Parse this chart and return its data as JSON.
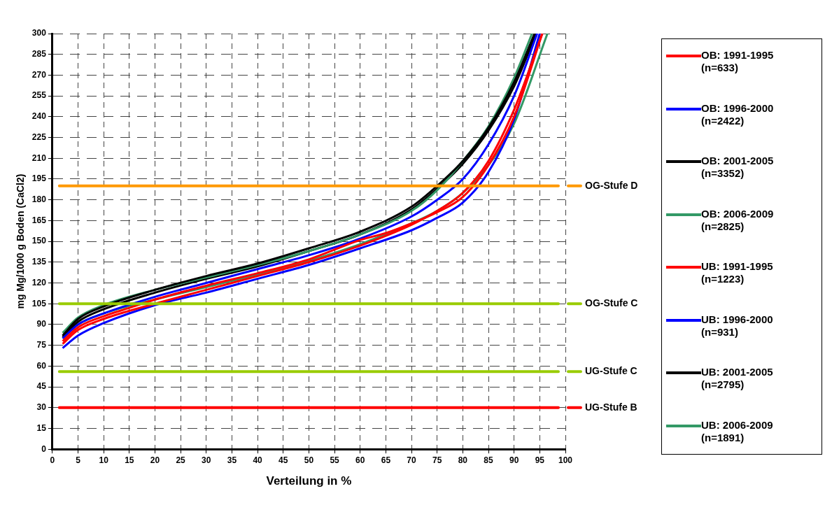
{
  "chart_data": {
    "type": "line",
    "xlabel": "Verteilung in %",
    "ylabel": "mg Mg/1000 g Boden (CaCl2)",
    "xlim": [
      0,
      100
    ],
    "ylim": [
      0,
      300
    ],
    "xticks": [
      0,
      5,
      10,
      15,
      20,
      25,
      30,
      35,
      40,
      45,
      50,
      55,
      60,
      65,
      70,
      75,
      80,
      85,
      90,
      95,
      100
    ],
    "yticks": [
      0,
      15,
      30,
      45,
      60,
      75,
      90,
      105,
      120,
      135,
      150,
      165,
      180,
      195,
      210,
      225,
      240,
      255,
      270,
      285,
      300
    ],
    "grid": true,
    "legend": "right",
    "line_style": "solid",
    "marker": "none",
    "ref_lines": [
      {
        "axis": "y",
        "value": 190,
        "label": "OG-Stufe D",
        "color": "#ff9900"
      },
      {
        "axis": "y",
        "value": 105,
        "label": "OG-Stufe C",
        "color": "#99cc00"
      },
      {
        "axis": "y",
        "value": 56,
        "label": "UG-Stufe C",
        "color": "#99cc00"
      },
      {
        "axis": "y",
        "value": 30,
        "label": "UG-Stufe B",
        "color": "#ff0000"
      }
    ],
    "series": [
      {
        "name": "OB: 1991-1995 (n=633)",
        "color": "#ff0000",
        "x": [
          2,
          5,
          10,
          15,
          20,
          30,
          40,
          50,
          60,
          65,
          70,
          75,
          80,
          85,
          90,
          95.5
        ],
        "values": [
          78,
          88,
          96,
          102,
          108,
          118,
          127,
          137,
          151,
          156,
          163,
          171,
          182,
          205,
          240,
          300
        ]
      },
      {
        "name": "OB: 1996-2000 (n=2422)",
        "color": "#0000ff",
        "x": [
          2,
          5,
          10,
          20,
          30,
          40,
          50,
          60,
          70,
          75,
          80,
          85,
          90,
          94.5
        ],
        "values": [
          80,
          90,
          98,
          110,
          120,
          130,
          140,
          152,
          168,
          180,
          195,
          220,
          255,
          300
        ]
      },
      {
        "name": "OB: 2001-2005 (n=3352)",
        "color": "#000000",
        "x": [
          2,
          5,
          10,
          20,
          30,
          40,
          50,
          60,
          70,
          75,
          80,
          85,
          90,
          94
        ],
        "values": [
          82,
          94,
          103,
          115,
          125,
          134,
          145,
          157,
          175,
          190,
          208,
          232,
          265,
          300
        ]
      },
      {
        "name": "OB: 2006-2009 (n=2825)",
        "color": "#339966",
        "x": [
          2,
          5,
          10,
          20,
          30,
          40,
          50,
          60,
          70,
          75,
          80,
          85,
          90,
          93.5
        ],
        "values": [
          84,
          95,
          104,
          115,
          124,
          133,
          143,
          155,
          172,
          187,
          208,
          233,
          268,
          300
        ]
      },
      {
        "name": "UB: 1991-1995 (n=1223)",
        "color": "#ff0000",
        "x": [
          2,
          5,
          10,
          20,
          30,
          40,
          50,
          60,
          70,
          75,
          80,
          85,
          90,
          95.5
        ],
        "values": [
          76,
          86,
          94,
          105,
          115,
          125,
          135,
          147,
          162,
          172,
          185,
          208,
          245,
          300
        ]
      },
      {
        "name": "UB: 1996-2000 (n=931)",
        "color": "#0000ff",
        "x": [
          2,
          5,
          10,
          20,
          30,
          40,
          50,
          60,
          70,
          75,
          80,
          85,
          90,
          95
        ],
        "values": [
          73,
          82,
          91,
          104,
          113,
          123,
          133,
          145,
          158,
          167,
          178,
          200,
          238,
          300
        ]
      },
      {
        "name": "UB: 2001-2005 (n=2795)",
        "color": "#000000",
        "x": [
          2,
          5,
          10,
          20,
          30,
          40,
          50,
          60,
          70,
          75,
          80,
          85,
          90,
          94.3
        ],
        "values": [
          81,
          92,
          101,
          113,
          123,
          132,
          143,
          155,
          173,
          188,
          206,
          230,
          262,
          300
        ]
      },
      {
        "name": "UB: 2006-2009 (n=1891)",
        "color": "#339966",
        "x": [
          2,
          5,
          10,
          20,
          30,
          40,
          50,
          60,
          70,
          75,
          80,
          85,
          90,
          96.5
        ],
        "values": [
          80,
          90,
          98,
          108,
          117,
          126,
          136,
          148,
          163,
          172,
          185,
          205,
          235,
          300
        ]
      }
    ]
  }
}
